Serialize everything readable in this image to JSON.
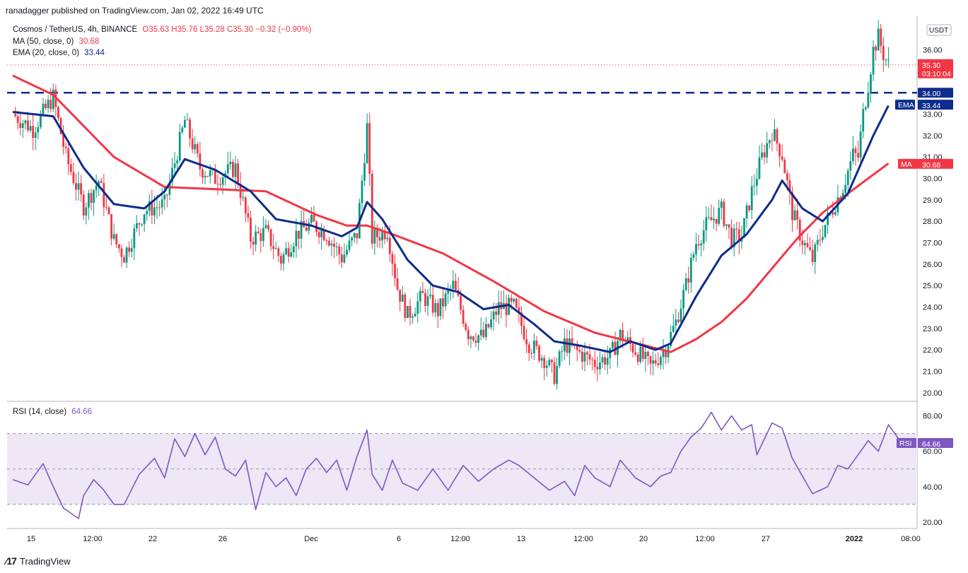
{
  "header": {
    "published": "ranadagger published on TradingView.com, Jan 02, 2022 16:49 UTC"
  },
  "legend": {
    "symbol": "Cosmos / TetherUS, 4h, BINANCE",
    "ohlc": "O35.63 H35.76 L35.28 C35.30 −0.32 (−0.90%)",
    "ma": "MA (50, close, 0)",
    "ma_value": "30.68",
    "ema": "EMA (20, close, 0)",
    "ema_value": "33.44",
    "rsi": "RSI (14, close)",
    "rsi_value": "64.66"
  },
  "price_axis": {
    "currency": "USDT",
    "last_price": "35.30",
    "countdown": "03:10:04",
    "level_label": "34.00",
    "ema_tag": "EMA",
    "ema_value": "33.44",
    "ma_tag": "MA",
    "ma_value": "30.68",
    "rsi_tag": "RSI",
    "rsi_value": "64.66"
  },
  "colors": {
    "up": "#089981",
    "down": "#f23645",
    "ma": "#f23645",
    "ema": "#0d2c8c",
    "rsi": "#7e57c2",
    "level": "#0d2c8c",
    "rsi_band": "#ede7f6"
  },
  "footer": {
    "brand": "TradingView"
  },
  "chart_data": {
    "type": "candlestick",
    "interval": "4h",
    "ylim": [
      19.6,
      37.6
    ],
    "yticks": [
      20,
      21,
      22,
      23,
      24,
      25,
      26,
      27,
      28,
      29,
      30,
      31,
      32,
      33,
      34,
      35,
      36,
      37
    ],
    "ytick_labels": [
      "20.00",
      "21.00",
      "22.00",
      "23.00",
      "24.00",
      "25.00",
      "26.00",
      "27.00",
      "28.00",
      "29.00",
      "30.00",
      "31.00",
      "32.00",
      "33.00",
      "34.00",
      "35.00",
      "36.00",
      "37.00"
    ],
    "xticks": [
      "15",
      "12:00",
      "22",
      "26",
      "Dec",
      "6",
      "12:00",
      "13",
      "12:00",
      "20",
      "12:00",
      "27",
      "2022",
      "08:00"
    ],
    "support_level": 34.0,
    "price_path": [
      [
        0,
        33.0
      ],
      [
        8,
        32.3
      ],
      [
        16,
        33.8
      ],
      [
        21,
        31.0
      ],
      [
        28,
        28.7
      ],
      [
        34,
        29.9
      ],
      [
        40,
        27.1
      ],
      [
        44,
        26.4
      ],
      [
        52,
        28.5
      ],
      [
        60,
        28.8
      ],
      [
        68,
        32.7
      ],
      [
        74,
        30.5
      ],
      [
        80,
        30.0
      ],
      [
        88,
        30.5
      ],
      [
        94,
        27.2
      ],
      [
        100,
        27.5
      ],
      [
        106,
        26.2
      ],
      [
        112,
        27.4
      ],
      [
        118,
        27.9
      ],
      [
        124,
        27.4
      ],
      [
        130,
        26.3
      ],
      [
        136,
        27.4
      ],
      [
        140,
        32.4
      ],
      [
        142,
        27.2
      ],
      [
        148,
        27.6
      ],
      [
        152,
        24.9
      ],
      [
        156,
        23.6
      ],
      [
        162,
        24.5
      ],
      [
        168,
        23.8
      ],
      [
        174,
        25.0
      ],
      [
        180,
        22.8
      ],
      [
        186,
        22.6
      ],
      [
        192,
        24.0
      ],
      [
        198,
        24.0
      ],
      [
        204,
        22.3
      ],
      [
        210,
        21.6
      ],
      [
        214,
        20.8
      ],
      [
        218,
        22.3
      ],
      [
        222,
        22.0
      ],
      [
        230,
        21.4
      ],
      [
        236,
        21.7
      ],
      [
        240,
        22.7
      ],
      [
        246,
        22.0
      ],
      [
        252,
        21.2
      ],
      [
        258,
        22.1
      ],
      [
        262,
        23.3
      ],
      [
        266,
        25.0
      ],
      [
        270,
        27.0
      ],
      [
        274,
        27.8
      ],
      [
        280,
        28.5
      ],
      [
        284,
        27.2
      ],
      [
        288,
        27.3
      ],
      [
        292,
        29.4
      ],
      [
        296,
        31.0
      ],
      [
        300,
        32.2
      ],
      [
        304,
        31.1
      ],
      [
        308,
        28.4
      ],
      [
        312,
        27.1
      ],
      [
        316,
        26.2
      ],
      [
        320,
        27.6
      ],
      [
        324,
        28.6
      ],
      [
        328,
        29.6
      ],
      [
        332,
        31.1
      ],
      [
        334,
        31.0
      ],
      [
        336,
        33.0
      ],
      [
        338,
        34.4
      ],
      [
        340,
        36.0
      ],
      [
        342,
        36.6
      ],
      [
        344,
        35.8
      ],
      [
        346,
        35.3
      ]
    ],
    "ma50_path": [
      [
        0,
        34.8
      ],
      [
        16,
        33.9
      ],
      [
        40,
        31.0
      ],
      [
        60,
        29.6
      ],
      [
        80,
        29.5
      ],
      [
        100,
        29.4
      ],
      [
        120,
        28.3
      ],
      [
        132,
        27.8
      ],
      [
        140,
        27.8
      ],
      [
        150,
        27.4
      ],
      [
        170,
        26.5
      ],
      [
        190,
        25.2
      ],
      [
        210,
        23.8
      ],
      [
        230,
        22.8
      ],
      [
        250,
        22.2
      ],
      [
        260,
        21.9
      ],
      [
        270,
        22.5
      ],
      [
        280,
        23.3
      ],
      [
        290,
        24.4
      ],
      [
        300,
        25.8
      ],
      [
        310,
        27.2
      ],
      [
        320,
        28.4
      ],
      [
        330,
        29.3
      ],
      [
        338,
        30.0
      ],
      [
        346,
        30.7
      ]
    ],
    "ema20_path": [
      [
        0,
        33.1
      ],
      [
        16,
        32.9
      ],
      [
        28,
        30.5
      ],
      [
        40,
        28.8
      ],
      [
        52,
        28.6
      ],
      [
        60,
        29.4
      ],
      [
        68,
        30.9
      ],
      [
        80,
        30.4
      ],
      [
        94,
        29.4
      ],
      [
        104,
        28.1
      ],
      [
        118,
        27.8
      ],
      [
        130,
        27.3
      ],
      [
        136,
        27.7
      ],
      [
        140,
        28.9
      ],
      [
        146,
        28.1
      ],
      [
        156,
        26.2
      ],
      [
        166,
        25.0
      ],
      [
        176,
        24.7
      ],
      [
        186,
        23.9
      ],
      [
        196,
        24.1
      ],
      [
        206,
        23.2
      ],
      [
        214,
        22.4
      ],
      [
        224,
        22.2
      ],
      [
        236,
        21.9
      ],
      [
        244,
        22.4
      ],
      [
        254,
        22.0
      ],
      [
        260,
        22.3
      ],
      [
        270,
        24.5
      ],
      [
        280,
        26.4
      ],
      [
        290,
        27.4
      ],
      [
        300,
        29.0
      ],
      [
        304,
        29.9
      ],
      [
        312,
        28.6
      ],
      [
        320,
        28.0
      ],
      [
        330,
        29.3
      ],
      [
        340,
        32.0
      ],
      [
        346,
        33.4
      ]
    ],
    "rsi": {
      "ylim": [
        18,
        85
      ],
      "yticks": [
        20,
        40,
        60,
        80
      ],
      "ytick_labels": [
        "20.00",
        "40.00",
        "60.00",
        "80.00"
      ],
      "band": [
        30,
        70
      ],
      "mid": 50,
      "path": [
        [
          0,
          44
        ],
        [
          6,
          41
        ],
        [
          12,
          53
        ],
        [
          16,
          40
        ],
        [
          20,
          28
        ],
        [
          26,
          22
        ],
        [
          28,
          35
        ],
        [
          32,
          44
        ],
        [
          36,
          38
        ],
        [
          40,
          30
        ],
        [
          44,
          30
        ],
        [
          50,
          47
        ],
        [
          56,
          56
        ],
        [
          60,
          45
        ],
        [
          64,
          67
        ],
        [
          68,
          57
        ],
        [
          72,
          70
        ],
        [
          76,
          58
        ],
        [
          80,
          68
        ],
        [
          84,
          50
        ],
        [
          88,
          46
        ],
        [
          92,
          55
        ],
        [
          96,
          27
        ],
        [
          100,
          48
        ],
        [
          104,
          40
        ],
        [
          108,
          45
        ],
        [
          112,
          35
        ],
        [
          116,
          50
        ],
        [
          120,
          56
        ],
        [
          124,
          48
        ],
        [
          128,
          55
        ],
        [
          132,
          38
        ],
        [
          136,
          57
        ],
        [
          140,
          72
        ],
        [
          142,
          47
        ],
        [
          146,
          38
        ],
        [
          150,
          55
        ],
        [
          154,
          42
        ],
        [
          160,
          38
        ],
        [
          166,
          50
        ],
        [
          172,
          38
        ],
        [
          178,
          52
        ],
        [
          184,
          43
        ],
        [
          190,
          50
        ],
        [
          196,
          55
        ],
        [
          200,
          52
        ],
        [
          206,
          45
        ],
        [
          212,
          38
        ],
        [
          218,
          43
        ],
        [
          222,
          35
        ],
        [
          226,
          52
        ],
        [
          230,
          45
        ],
        [
          236,
          40
        ],
        [
          240,
          55
        ],
        [
          246,
          45
        ],
        [
          252,
          40
        ],
        [
          256,
          46
        ],
        [
          260,
          48
        ],
        [
          264,
          60
        ],
        [
          268,
          68
        ],
        [
          272,
          73
        ],
        [
          276,
          82
        ],
        [
          280,
          72
        ],
        [
          284,
          80
        ],
        [
          288,
          72
        ],
        [
          292,
          75
        ],
        [
          294,
          58
        ],
        [
          300,
          76
        ],
        [
          304,
          73
        ],
        [
          308,
          56
        ],
        [
          312,
          46
        ],
        [
          316,
          36
        ],
        [
          322,
          40
        ],
        [
          326,
          52
        ],
        [
          330,
          50
        ],
        [
          334,
          58
        ],
        [
          338,
          66
        ],
        [
          342,
          60
        ],
        [
          346,
          75
        ],
        [
          350,
          67
        ],
        [
          352,
          64.66
        ]
      ]
    }
  }
}
